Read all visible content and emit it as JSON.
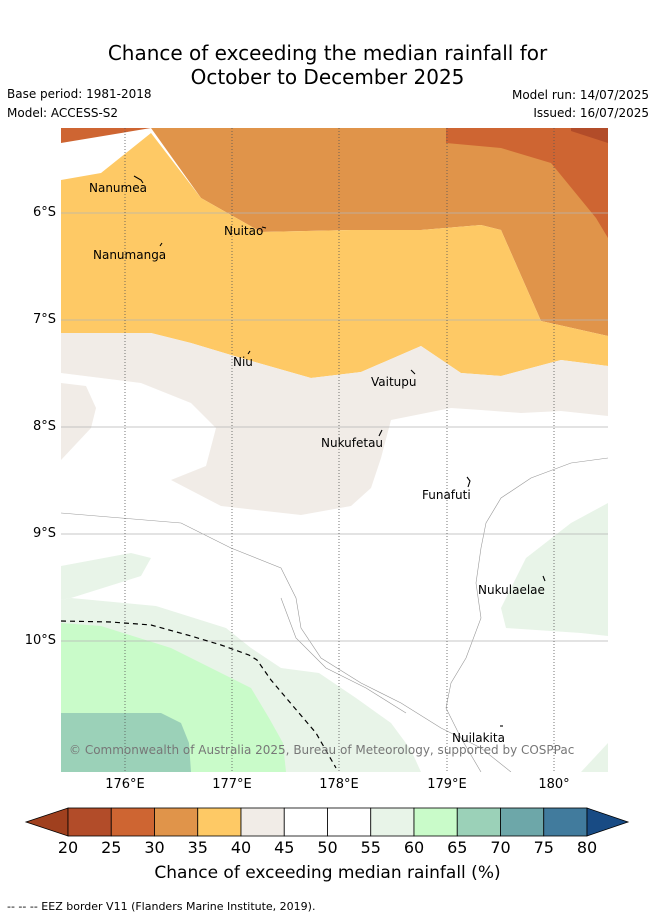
{
  "header": {
    "title_line1": "Chance of exceeding the median rainfall for",
    "title_line2": "October to December 2025",
    "base_period": "Base period: 1981-2018",
    "model": "Model: ACCESS-S2",
    "model_run": "Model run: 14/07/2025",
    "issued": "Issued: 16/07/2025"
  },
  "map": {
    "lat_labels": [
      "6°S",
      "7°S",
      "8°S",
      "9°S",
      "10°S"
    ],
    "lon_labels": [
      "176°E",
      "177°E",
      "178°E",
      "179°E",
      "180°"
    ],
    "islands": [
      {
        "name": "Nanumea",
        "lon": 176.15,
        "lat": -5.68
      },
      {
        "name": "Nuitao",
        "lon": 177.32,
        "lat": -6.13
      },
      {
        "name": "Nanumanga",
        "lon": 176.32,
        "lat": -6.3
      },
      {
        "name": "Niu",
        "lon": 177.17,
        "lat": -7.3
      },
      {
        "name": "Vaitupu",
        "lon": 178.68,
        "lat": -7.48
      },
      {
        "name": "Nukufetau",
        "lon": 178.38,
        "lat": -8.02
      },
      {
        "name": "Funafuti",
        "lon": 179.2,
        "lat": -8.52
      },
      {
        "name": "Nukulaelae",
        "lon": 179.85,
        "lat": -9.38
      },
      {
        "name": "Nuilakita",
        "lon": 179.5,
        "lat": -10.78
      }
    ],
    "copyright": "© Commonwealth of Australia 2025, Bureau of Meteorology, supported by COSPPac"
  },
  "colorbar": {
    "ticks": [
      "20",
      "25",
      "30",
      "35",
      "40",
      "45",
      "50",
      "55",
      "60",
      "65",
      "70",
      "75",
      "80"
    ],
    "colors": [
      "#a0401e",
      "#b24c29",
      "#ce6532",
      "#e0944a",
      "#fec965",
      "#f1ece7",
      "#ffffff",
      "#ffffff",
      "#e8f4e8",
      "#c9fbc9",
      "#9bd1b8",
      "#6da7a9",
      "#417b9d",
      "#184b84"
    ],
    "title": "Chance of exceeding median rainfall (%)"
  },
  "footnote": "--  --  -- EEZ border V11 (Flanders Marine Institute, 2019)."
}
